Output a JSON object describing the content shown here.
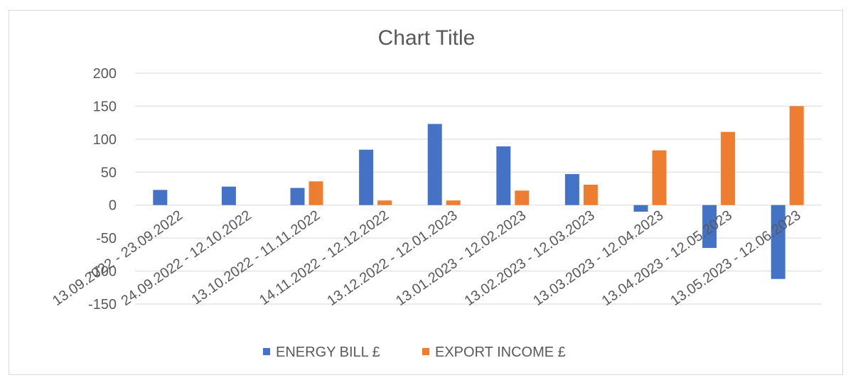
{
  "chart_data": {
    "type": "bar",
    "title": "Chart Title",
    "xlabel": "",
    "ylabel": "",
    "ylim": [
      -150,
      200
    ],
    "yticks": [
      200,
      150,
      100,
      50,
      0,
      -50,
      -100,
      -150
    ],
    "grid": true,
    "legend_position": "bottom",
    "categories": [
      "13.09.2022 - 23.09.2022",
      "24.09.2022 - 12.10.2022",
      "13.10.2022 - 11.11.2022",
      "14.11.2022 - 12.12.2022",
      "13.12.2022 - 12.01.2023",
      "13.01.2023 - 12.02.2023",
      "13.02.2023 - 12.03.2023",
      "13.03.2023 - 12.04.2023",
      "13.04.2023 - 12.05.2023",
      "13.05.2023 - 12.06.2023"
    ],
    "series": [
      {
        "name": "ENERGY BILL £",
        "color": "#4472c4",
        "values": [
          23,
          28,
          26,
          84,
          123,
          89,
          47,
          -10,
          -65,
          -112
        ]
      },
      {
        "name": "EXPORT INCOME £",
        "color": "#ed7d31",
        "values": [
          0,
          0,
          36,
          7,
          7,
          22,
          31,
          83,
          111,
          150
        ]
      }
    ]
  }
}
